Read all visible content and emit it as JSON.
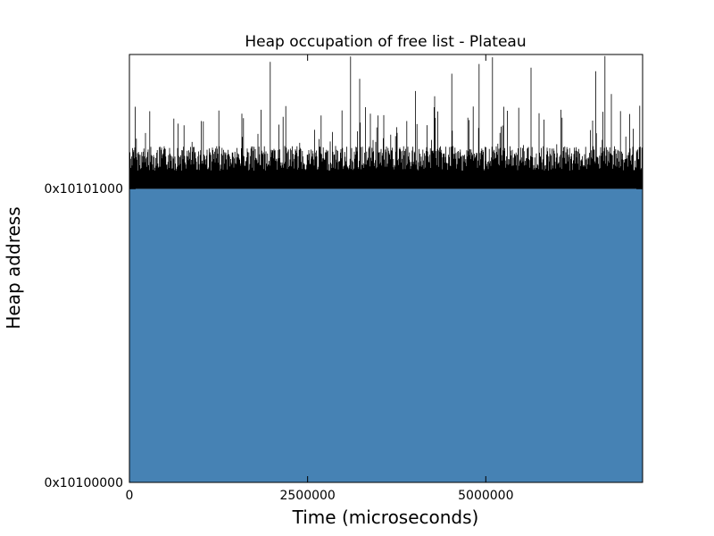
{
  "chart_data": {
    "type": "area",
    "title": "Heap occupation of free list - Plateau",
    "xlabel": "Time (microseconds)",
    "ylabel": "Heap address",
    "xlim": [
      0,
      7200000
    ],
    "ylim_hex": [
      "0x10100000",
      "0x10101750"
    ],
    "x_ticks": [
      {
        "value": 0,
        "label": "0"
      },
      {
        "value": 2500000,
        "label": "2500000"
      },
      {
        "value": 5000000,
        "label": "5000000"
      }
    ],
    "y_ticks": [
      {
        "value_hex": "0x10100000",
        "label": "0x10100000"
      },
      {
        "value_hex": "0x10101000",
        "label": "0x10101000"
      }
    ],
    "series": [
      {
        "role": "filled-plateau",
        "color": "#4682b4",
        "x_range": [
          0,
          7200000
        ],
        "y_from_hex": "0x10100000",
        "y_to_hex": "0x10101000"
      },
      {
        "role": "fluctuation-spikes",
        "color": "#000000",
        "x_range": [
          0,
          7200000
        ],
        "y_base_hex": "0x10101000",
        "y_typical_top_hex": "0x10101250",
        "y_peak_hex": "0x10101740"
      }
    ],
    "grid": false,
    "legend": "none"
  }
}
